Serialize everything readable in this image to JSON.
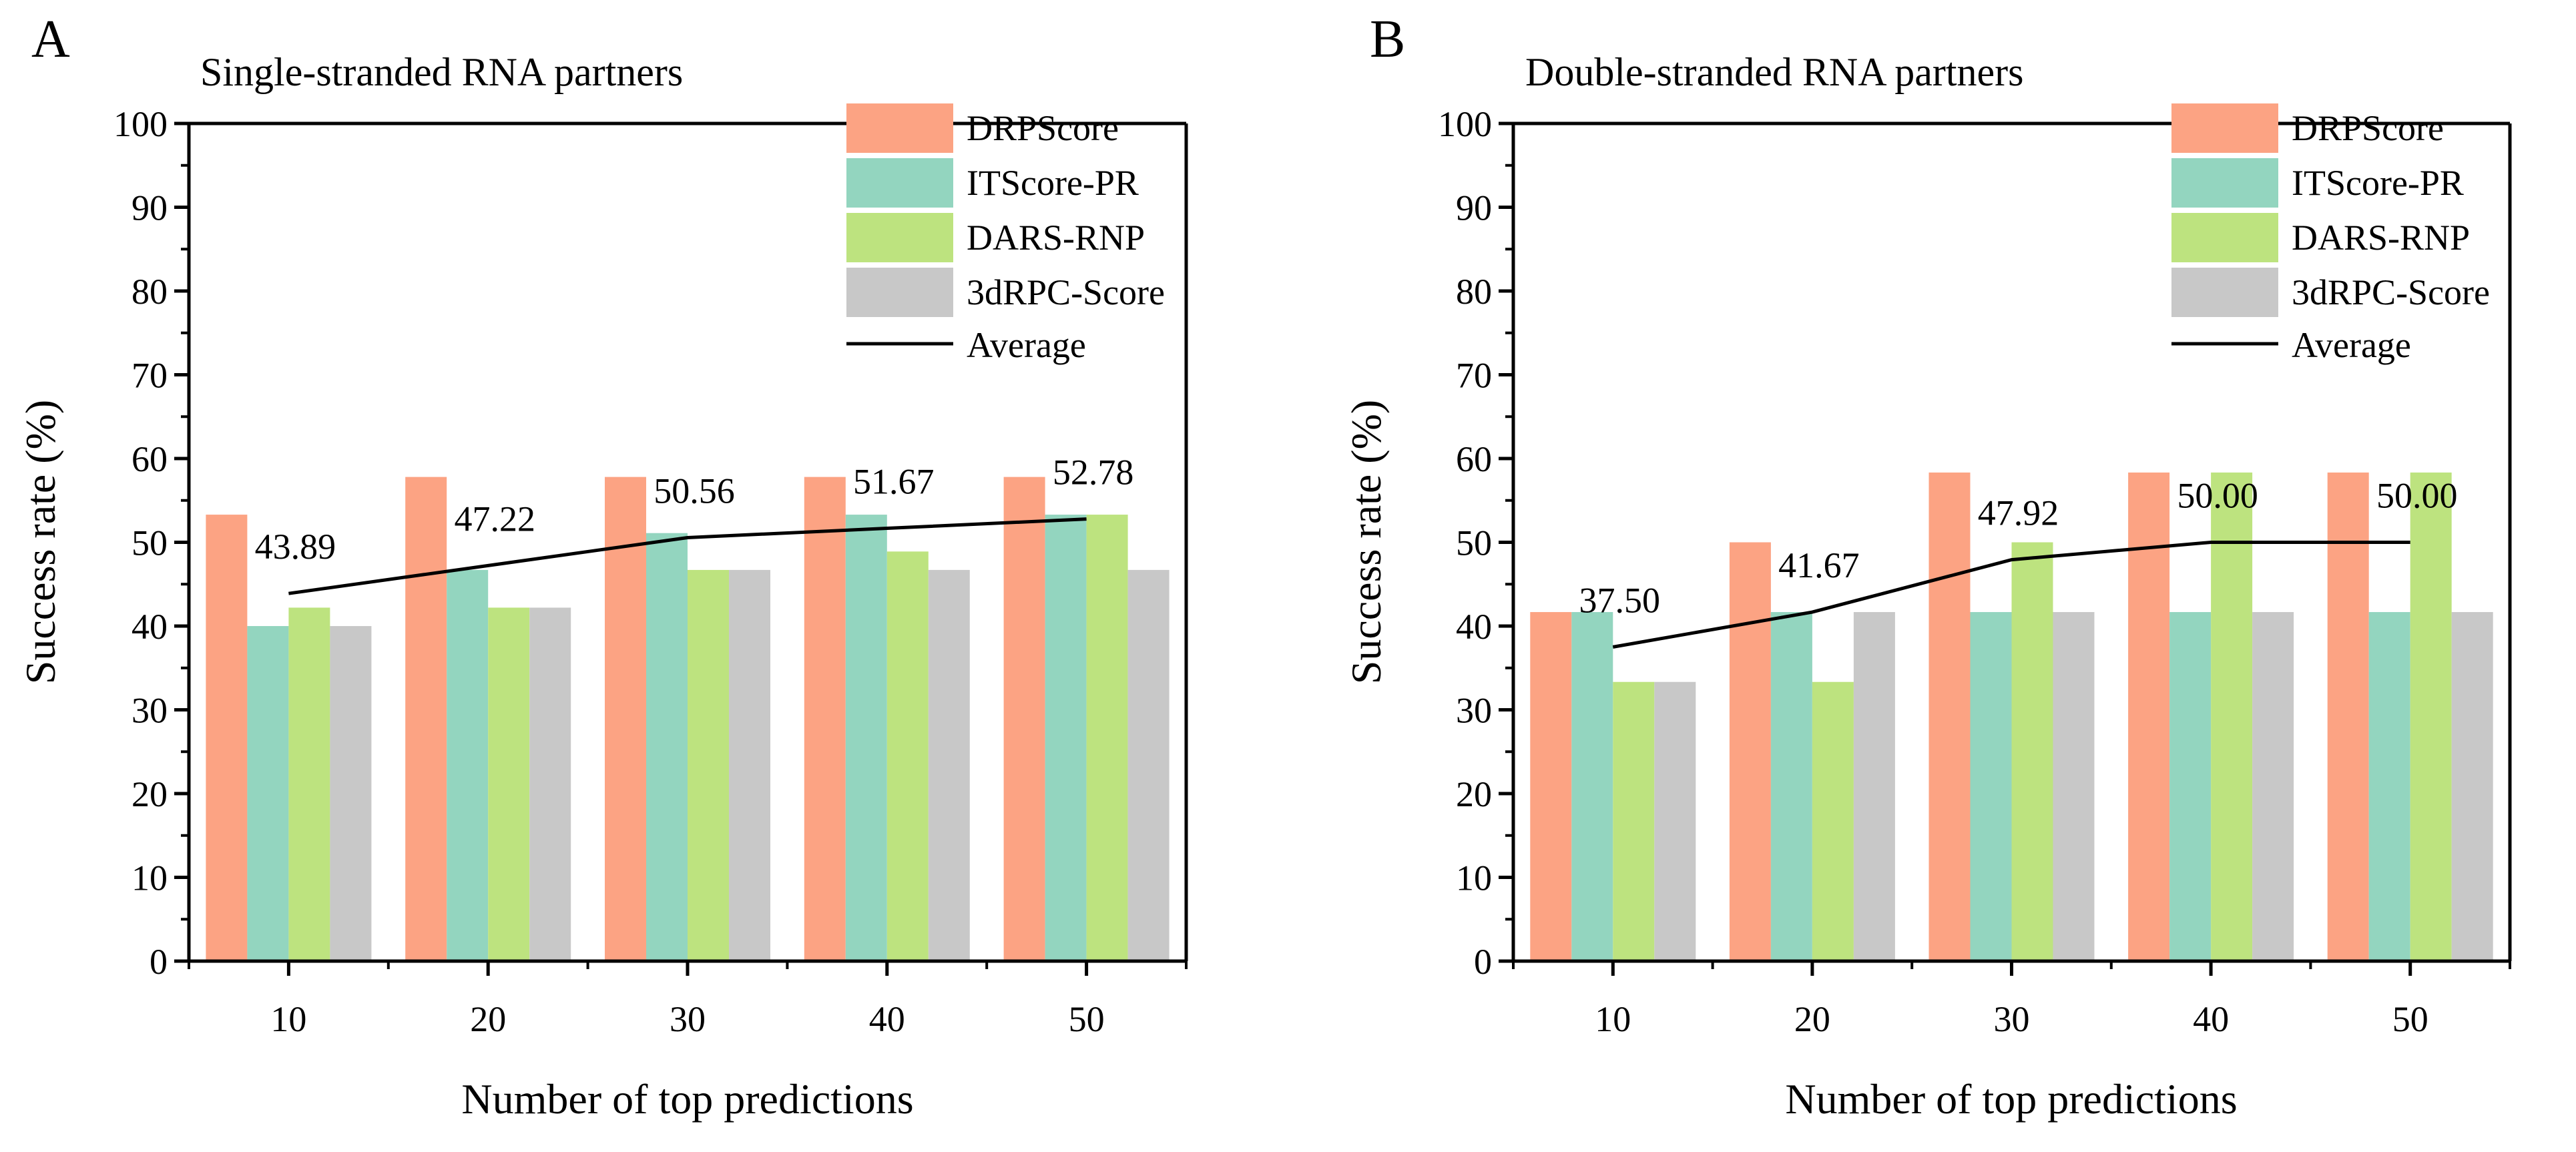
{
  "colors": {
    "series": [
      "#FCA383",
      "#93D5BF",
      "#BDE37F",
      "#C8C8C8"
    ],
    "average_line": "#000000"
  },
  "chart_data": [
    {
      "panel_label": "A",
      "type": "bar",
      "title": "Single-stranded RNA partners",
      "xlabel": "Number of top predictions",
      "ylabel": "Success rate (%)",
      "categories": [
        "10",
        "20",
        "30",
        "40",
        "50"
      ],
      "ylim": [
        0,
        100
      ],
      "yticks": [
        "0",
        "10",
        "20",
        "30",
        "40",
        "50",
        "60",
        "70",
        "80",
        "90",
        "100"
      ],
      "series": [
        {
          "name": "DRPScore",
          "values": [
            53.3,
            57.8,
            57.8,
            57.8,
            57.8
          ]
        },
        {
          "name": "ITScore-PR",
          "values": [
            40.0,
            46.7,
            51.1,
            53.3,
            53.3
          ]
        },
        {
          "name": "DARS-RNP",
          "values": [
            42.2,
            42.2,
            46.7,
            48.9,
            53.3
          ]
        },
        {
          "name": "3dRPC-Score",
          "values": [
            40.0,
            42.2,
            46.7,
            46.7,
            46.7
          ]
        }
      ],
      "average": {
        "name": "Average",
        "values": [
          43.89,
          47.22,
          50.56,
          51.67,
          52.78
        ],
        "labels": [
          "43.89",
          "47.22",
          "50.56",
          "51.67",
          "52.78"
        ]
      },
      "legend": "top-right"
    },
    {
      "panel_label": "B",
      "type": "bar",
      "title": "Double-stranded RNA partners",
      "xlabel": "Number of top predictions",
      "ylabel": "Success rate (%)",
      "categories": [
        "10",
        "20",
        "30",
        "40",
        "50"
      ],
      "ylim": [
        0,
        100
      ],
      "yticks": [
        "0",
        "10",
        "20",
        "30",
        "40",
        "50",
        "60",
        "70",
        "80",
        "90",
        "100"
      ],
      "series": [
        {
          "name": "DRPScore",
          "values": [
            41.67,
            50.0,
            58.33,
            58.33,
            58.33
          ]
        },
        {
          "name": "ITScore-PR",
          "values": [
            41.67,
            41.67,
            41.67,
            41.67,
            41.67
          ]
        },
        {
          "name": "DARS-RNP",
          "values": [
            33.33,
            33.33,
            50.0,
            58.33,
            58.33
          ]
        },
        {
          "name": "3dRPC-Score",
          "values": [
            33.33,
            41.67,
            41.67,
            41.67,
            41.67
          ]
        }
      ],
      "average": {
        "name": "Average",
        "values": [
          37.5,
          41.67,
          47.92,
          50.0,
          50.0
        ],
        "labels": [
          "37.50",
          "41.67",
          "47.92",
          "50.00",
          "50.00"
        ]
      },
      "legend": "top-right"
    }
  ]
}
